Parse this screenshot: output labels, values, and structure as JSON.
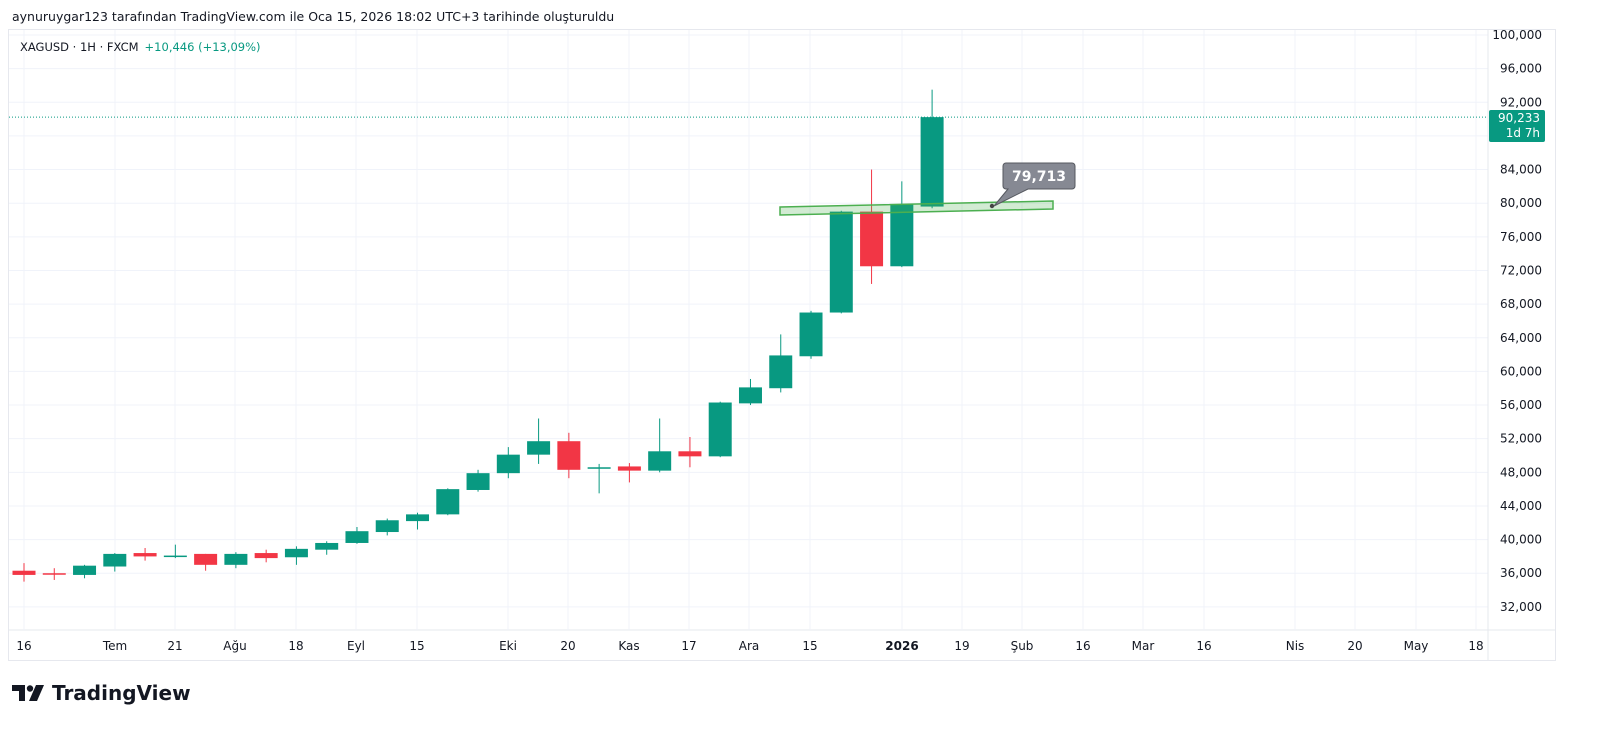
{
  "caption": "aynuruygar123 tarafından TradingView.com ile Oca 15, 2026 18:02 UTC+3 tarihinde oluşturuldu",
  "legend": {
    "symbol": "XAGUSD · 1H · FXCM",
    "change": "+10,446 (+13,09%)"
  },
  "last_price": {
    "value": "90,233",
    "countdown": "1d 7h"
  },
  "annotation_label": "79,713",
  "brand": "TradingView",
  "colors": {
    "up": "#089981",
    "down": "#f23645",
    "grid": "#f0f3fa",
    "label_bg": "#868993",
    "trend": "#4caf50"
  },
  "chart_data": {
    "type": "candlestick",
    "ylim": [
      30000,
      100000
    ],
    "y_ticks": [
      "100,000",
      "96,000",
      "92,000",
      "88,000",
      "84,000",
      "80,000",
      "76,000",
      "72,000",
      "68,000",
      "64,000",
      "60,000",
      "56,000",
      "52,000",
      "48,000",
      "44,000",
      "40,000",
      "36,000",
      "32,000"
    ],
    "x_ticks": [
      "16",
      "Tem",
      "21",
      "Ağu",
      "18",
      "Eyl",
      "15",
      "Eki",
      "20",
      "Kas",
      "17",
      "Ara",
      "15",
      "2026",
      "19",
      "Şub",
      "16",
      "Mar",
      "16",
      "Nis",
      "20",
      "May",
      "18"
    ],
    "candles": [
      [
        36.3,
        37.2,
        35.0,
        35.8
      ],
      [
        36.0,
        36.6,
        35.2,
        35.9
      ],
      [
        35.8,
        37.0,
        35.4,
        36.9
      ],
      [
        36.8,
        38.4,
        36.2,
        38.3
      ],
      [
        38.4,
        39.0,
        37.5,
        38.0
      ],
      [
        38.0,
        39.4,
        37.8,
        38.1
      ],
      [
        38.3,
        38.3,
        36.3,
        37.0
      ],
      [
        37.0,
        38.5,
        36.6,
        38.3
      ],
      [
        38.4,
        38.8,
        37.3,
        37.8
      ],
      [
        37.9,
        39.2,
        37.0,
        38.9
      ],
      [
        38.8,
        39.8,
        38.2,
        39.6
      ],
      [
        39.6,
        41.5,
        39.5,
        41.0
      ],
      [
        40.9,
        42.5,
        40.5,
        42.3
      ],
      [
        42.2,
        43.2,
        41.2,
        43.0
      ],
      [
        43.0,
        46.1,
        42.9,
        46.0
      ],
      [
        45.9,
        48.3,
        45.7,
        47.9
      ],
      [
        47.9,
        51.0,
        47.3,
        50.1
      ],
      [
        50.1,
        54.4,
        49.0,
        51.7
      ],
      [
        51.7,
        52.7,
        47.3,
        48.3
      ],
      [
        48.5,
        49.0,
        45.5,
        48.6
      ],
      [
        48.7,
        49.1,
        46.8,
        48.2
      ],
      [
        48.2,
        54.4,
        48.0,
        50.5
      ],
      [
        50.5,
        52.2,
        48.6,
        49.9
      ],
      [
        49.9,
        56.4,
        49.8,
        56.3
      ],
      [
        56.2,
        59.1,
        56.0,
        58.1
      ],
      [
        58.0,
        64.4,
        57.5,
        61.9
      ],
      [
        61.8,
        67.2,
        61.5,
        67.0
      ],
      [
        67.0,
        79.1,
        66.9,
        79.0
      ],
      [
        79.0,
        84.0,
        70.4,
        72.5
      ],
      [
        72.5,
        82.6,
        72.4,
        79.9
      ],
      [
        79.6,
        93.5,
        79.4,
        90.233
      ]
    ],
    "candle_units": "thousands (OHLC)",
    "last_price": 90233,
    "trendline_value": 79713
  }
}
